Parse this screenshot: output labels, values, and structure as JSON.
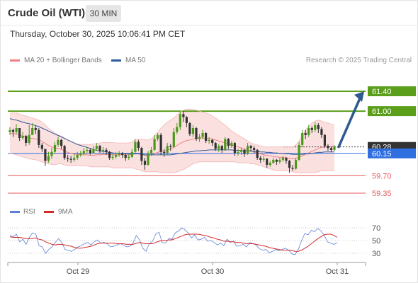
{
  "header": {
    "title": "Crude Oil (WTI)",
    "timeframe": "30 MIN"
  },
  "timestamp": "Thursday, October 30, 2025 10:06:41 PM CET",
  "legend": {
    "items": [
      {
        "label": "MA 20 + Bollinger Bands",
        "color": "#f08080"
      },
      {
        "label": "MA 50",
        "color": "#2d5a9a"
      }
    ],
    "credit": "Research © 2025 Trading Central"
  },
  "colors": {
    "resistance": "#5a9e1a",
    "support": "#e85a5a",
    "current_price": "#333333",
    "pivot": "#2f6fe0",
    "arrow": "#2e5a8f",
    "candle_up": "#4a9a1a",
    "candle_down": "#333333",
    "bollinger_fill": "#fbe0e0",
    "rsi_line": "#5b7fd6",
    "rsi_ma_line": "#d62a2a"
  },
  "chart_data": {
    "type": "candlestick",
    "price_ylim": [
      59.2,
      61.6
    ],
    "x_ticks": [
      "Oct 29",
      "Oct 30",
      "Oct 31"
    ],
    "levels": [
      {
        "value": 61.4,
        "label": "61.40",
        "kind": "resistance"
      },
      {
        "value": 61.0,
        "label": "61.00",
        "kind": "resistance"
      },
      {
        "value": 60.28,
        "label": "60.28",
        "kind": "current"
      },
      {
        "value": 60.15,
        "label": "60.15",
        "kind": "pivot"
      },
      {
        "value": 59.7,
        "label": "59.70",
        "kind": "support"
      },
      {
        "value": 59.35,
        "label": "59.35",
        "kind": "support"
      }
    ],
    "projection": {
      "from": 60.28,
      "to": 61.4
    },
    "close": [
      60.62,
      60.58,
      60.66,
      60.46,
      60.5,
      60.36,
      60.52,
      60.66,
      60.62,
      60.32,
      60.24,
      60.0,
      60.1,
      60.18,
      60.32,
      60.42,
      60.3,
      60.06,
      60.04,
      60.02,
      60.06,
      60.12,
      60.14,
      60.2,
      60.22,
      60.16,
      60.24,
      60.3,
      60.2,
      60.22,
      60.18,
      60.06,
      60.08,
      60.12,
      60.15,
      60.12,
      60.06,
      60.08,
      60.18,
      60.38,
      60.26,
      60.0,
      59.92,
      60.14,
      60.22,
      60.44,
      60.52,
      60.18,
      60.16,
      60.3,
      60.28,
      60.58,
      60.68,
      60.94,
      60.88,
      60.76,
      60.54,
      60.66,
      60.44,
      60.48,
      60.56,
      60.4,
      60.42,
      60.36,
      60.24,
      60.3,
      60.22,
      60.44,
      60.3,
      60.36,
      60.16,
      60.18,
      60.22,
      60.14,
      60.3,
      60.26,
      60.22,
      60.06,
      60.02,
      60.04,
      59.92,
      59.96,
      60.02,
      59.98,
      60.02,
      60.06,
      60.0,
      59.86,
      59.84,
      60.02,
      60.32,
      60.56,
      60.52,
      60.66,
      60.62,
      60.72,
      60.64,
      60.52,
      60.3,
      60.26,
      60.22,
      60.28
    ],
    "high": [
      60.68,
      60.65,
      60.74,
      60.66,
      60.58,
      60.52,
      60.72,
      60.76,
      60.7,
      60.66,
      60.36,
      60.24,
      60.18,
      60.26,
      60.38,
      60.48,
      60.44,
      60.32,
      60.12,
      60.1,
      60.14,
      60.18,
      60.2,
      60.26,
      60.28,
      60.26,
      60.3,
      60.36,
      60.32,
      60.28,
      60.26,
      60.2,
      60.14,
      60.18,
      60.2,
      60.18,
      60.14,
      60.14,
      60.24,
      60.44,
      60.42,
      60.28,
      60.06,
      60.2,
      60.28,
      60.52,
      60.56,
      60.56,
      60.24,
      60.36,
      60.34,
      60.66,
      60.76,
      60.98,
      61.0,
      60.9,
      60.78,
      60.72,
      60.68,
      60.54,
      60.62,
      60.58,
      60.48,
      60.44,
      60.38,
      60.34,
      60.32,
      60.48,
      60.46,
      60.4,
      60.38,
      60.24,
      60.26,
      60.24,
      60.36,
      60.32,
      60.3,
      60.24,
      60.1,
      60.1,
      60.06,
      60.0,
      60.06,
      60.04,
      60.06,
      60.1,
      60.08,
      60.02,
      59.92,
      60.06,
      60.38,
      60.62,
      60.62,
      60.72,
      60.7,
      60.78,
      60.76,
      60.68,
      60.54,
      60.34,
      60.28,
      60.32
    ],
    "low": [
      60.52,
      60.48,
      60.54,
      60.4,
      60.42,
      60.3,
      60.32,
      60.58,
      60.54,
      60.26,
      60.18,
      59.9,
      59.96,
      60.04,
      60.14,
      60.28,
      60.24,
      60.02,
      59.98,
      59.96,
      59.98,
      60.02,
      60.08,
      60.12,
      60.16,
      60.12,
      60.14,
      60.2,
      60.16,
      60.14,
      60.12,
      60.02,
      60.02,
      60.04,
      60.08,
      60.06,
      60.0,
      60.02,
      60.06,
      60.16,
      60.2,
      59.92,
      59.82,
      59.9,
      60.1,
      60.2,
      60.4,
      60.12,
      60.08,
      60.12,
      60.2,
      60.26,
      60.54,
      60.62,
      60.78,
      60.68,
      60.5,
      60.48,
      60.4,
      60.38,
      60.44,
      60.36,
      60.34,
      60.3,
      60.2,
      60.18,
      60.16,
      60.2,
      60.24,
      60.26,
      60.1,
      60.1,
      60.12,
      60.08,
      60.12,
      60.18,
      60.16,
      60.02,
      59.96,
      59.98,
      59.86,
      59.88,
      59.94,
      59.92,
      59.94,
      59.98,
      59.94,
      59.76,
      59.8,
      59.82,
      60.0,
      60.28,
      60.44,
      60.48,
      60.56,
      60.58,
      60.56,
      60.46,
      60.26,
      60.2,
      60.18,
      60.2
    ],
    "ma20": [
      60.55,
      60.55,
      60.54,
      60.52,
      60.5,
      60.48,
      60.46,
      60.45,
      60.44,
      60.42,
      60.39,
      60.35,
      60.31,
      60.28,
      60.26,
      60.25,
      60.23,
      60.2,
      60.17,
      60.15,
      60.14,
      60.13,
      60.12,
      60.12,
      60.12,
      60.11,
      60.11,
      60.12,
      60.12,
      60.13,
      60.13,
      60.13,
      60.12,
      60.12,
      60.12,
      60.12,
      60.12,
      60.12,
      60.13,
      60.14,
      60.14,
      60.13,
      60.11,
      60.11,
      60.12,
      60.14,
      60.17,
      60.19,
      60.2,
      60.22,
      60.24,
      60.27,
      60.31,
      60.35,
      60.38,
      60.41,
      60.42,
      60.44,
      60.45,
      60.46,
      60.46,
      60.45,
      60.45,
      60.44,
      60.42,
      60.4,
      60.38,
      60.36,
      60.34,
      60.32,
      60.3,
      60.28,
      60.26,
      60.24,
      60.22,
      60.2,
      60.18,
      60.16,
      60.14,
      60.12,
      60.11,
      60.1,
      60.09,
      60.08,
      60.07,
      60.07,
      60.06,
      60.05,
      60.04,
      60.05,
      60.07,
      60.1,
      60.13,
      60.16,
      60.19,
      60.22,
      60.25,
      60.27,
      60.28,
      60.29,
      60.29,
      60.29
    ],
    "bb_upper": [
      60.95,
      60.96,
      60.96,
      60.94,
      60.92,
      60.9,
      60.88,
      60.86,
      60.84,
      60.82,
      60.78,
      60.72,
      60.66,
      60.6,
      60.56,
      60.52,
      60.5,
      60.46,
      60.42,
      60.38,
      60.36,
      60.34,
      60.33,
      60.33,
      60.33,
      60.33,
      60.34,
      60.35,
      60.36,
      60.37,
      60.37,
      60.37,
      60.37,
      60.36,
      60.36,
      60.36,
      60.36,
      60.36,
      60.38,
      60.42,
      60.44,
      60.44,
      60.42,
      60.42,
      60.44,
      60.5,
      60.58,
      60.66,
      60.72,
      60.78,
      60.82,
      60.86,
      60.92,
      60.98,
      61.02,
      61.04,
      61.04,
      61.03,
      61.02,
      61.0,
      60.98,
      60.96,
      60.94,
      60.9,
      60.86,
      60.82,
      60.76,
      60.72,
      60.66,
      60.6,
      60.56,
      60.52,
      60.48,
      60.44,
      60.4,
      60.36,
      60.34,
      60.32,
      60.3,
      60.28,
      60.28,
      60.28,
      60.28,
      60.28,
      60.28,
      60.28,
      60.28,
      60.28,
      60.28,
      60.32,
      60.4,
      60.52,
      60.62,
      60.7,
      60.76,
      60.8,
      60.82,
      60.8,
      60.78,
      60.76,
      60.74,
      60.72
    ],
    "bb_lower": [
      60.15,
      60.14,
      60.12,
      60.1,
      60.08,
      60.06,
      60.04,
      60.03,
      60.02,
      60.0,
      59.98,
      59.96,
      59.94,
      59.93,
      59.92,
      59.94,
      59.94,
      59.92,
      59.9,
      59.9,
      59.9,
      59.9,
      59.9,
      59.9,
      59.9,
      59.88,
      59.88,
      59.88,
      59.88,
      59.88,
      59.88,
      59.88,
      59.86,
      59.86,
      59.86,
      59.86,
      59.86,
      59.86,
      59.86,
      59.84,
      59.82,
      59.8,
      59.78,
      59.78,
      59.78,
      59.78,
      59.78,
      59.76,
      59.76,
      59.76,
      59.76,
      59.76,
      59.78,
      59.8,
      59.82,
      59.86,
      59.9,
      59.94,
      59.96,
      59.98,
      59.98,
      59.98,
      59.98,
      59.98,
      59.98,
      59.98,
      59.98,
      59.98,
      59.98,
      59.98,
      59.98,
      59.96,
      59.96,
      59.96,
      59.96,
      59.94,
      59.94,
      59.92,
      59.9,
      59.88,
      59.86,
      59.84,
      59.82,
      59.8,
      59.8,
      59.8,
      59.8,
      59.8,
      59.78,
      59.76,
      59.76,
      59.76,
      59.76,
      59.76,
      59.76,
      59.76,
      59.78,
      59.8,
      59.8,
      59.8,
      59.8,
      59.8
    ],
    "ma50": [
      60.85,
      60.83,
      60.82,
      60.8,
      60.78,
      60.76,
      60.75,
      60.73,
      60.71,
      60.69,
      60.66,
      60.63,
      60.6,
      60.57,
      60.54,
      60.51,
      60.48,
      60.45,
      60.42,
      60.39,
      60.36,
      60.33,
      60.31,
      60.29,
      60.27,
      60.25,
      60.23,
      60.21,
      60.2,
      60.19,
      60.18,
      60.17,
      60.16,
      60.15,
      60.15,
      60.15,
      60.14,
      60.14,
      60.14,
      60.14,
      60.14,
      60.13,
      60.12,
      60.12,
      60.12,
      60.12,
      60.12,
      60.12,
      60.12,
      60.12,
      60.12,
      60.13,
      60.14,
      60.15,
      60.16,
      60.17,
      60.18,
      60.19,
      60.2,
      60.2,
      60.21,
      60.21,
      60.22,
      60.22,
      60.22,
      60.22,
      60.22,
      60.22,
      60.22,
      60.22,
      60.21,
      60.21,
      60.21,
      60.2,
      60.2,
      60.2,
      60.19,
      60.19,
      60.18,
      60.18,
      60.17,
      60.17,
      60.16,
      60.16,
      60.15,
      60.15,
      60.14,
      60.14,
      60.13,
      60.13,
      60.13,
      60.13,
      60.14,
      60.14,
      60.15,
      60.16,
      60.17,
      60.17,
      60.18,
      60.18,
      60.18,
      60.18
    ],
    "rsi": {
      "legend": [
        {
          "label": "RSI",
          "color": "#5b7fd6"
        },
        {
          "label": "9MA",
          "color": "#d62a2a"
        }
      ],
      "levels": [
        70,
        50,
        30
      ],
      "ylim": [
        20,
        80
      ],
      "values": [
        58,
        56,
        60,
        48,
        52,
        44,
        55,
        62,
        60,
        42,
        40,
        30,
        36,
        40,
        47,
        53,
        47,
        36,
        35,
        33,
        36,
        40,
        42,
        45,
        47,
        43,
        48,
        51,
        46,
        47,
        45,
        40,
        41,
        43,
        45,
        43,
        40,
        41,
        46,
        58,
        51,
        38,
        33,
        45,
        49,
        60,
        63,
        47,
        46,
        53,
        52,
        62,
        65,
        70,
        67,
        62,
        54,
        59,
        51,
        52,
        55,
        49,
        50,
        47,
        43,
        46,
        42,
        52,
        47,
        49,
        41,
        42,
        44,
        40,
        47,
        45,
        43,
        37,
        35,
        36,
        31,
        33,
        36,
        34,
        36,
        38,
        35,
        29,
        28,
        36,
        50,
        61,
        59,
        66,
        64,
        69,
        65,
        58,
        48,
        46,
        44,
        47
      ],
      "ma": [
        56,
        55,
        55,
        55,
        54,
        53,
        53,
        53,
        54,
        52,
        51,
        48,
        46,
        44,
        43,
        44,
        44,
        43,
        42,
        41,
        39,
        38,
        38,
        39,
        40,
        41,
        43,
        45,
        46,
        46,
        46,
        46,
        46,
        45,
        45,
        45,
        44,
        44,
        44,
        46,
        47,
        46,
        45,
        45,
        45,
        47,
        49,
        50,
        50,
        51,
        51,
        53,
        55,
        57,
        59,
        60,
        60,
        60,
        60,
        59,
        58,
        57,
        55,
        54,
        52,
        51,
        49,
        49,
        48,
        48,
        47,
        47,
        46,
        45,
        45,
        45,
        44,
        43,
        42,
        41,
        39,
        38,
        37,
        36,
        35,
        35,
        35,
        34,
        33,
        33,
        35,
        38,
        41,
        45,
        49,
        53,
        56,
        59,
        60,
        60,
        58,
        55
      ]
    }
  }
}
